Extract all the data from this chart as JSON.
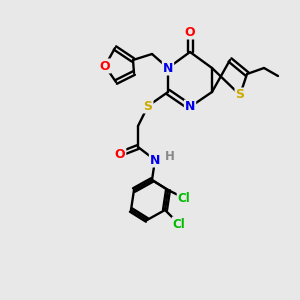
{
  "background_color": "#e8e8e8",
  "bond_color": "#000000",
  "atom_colors": {
    "N": "#0000ee",
    "O": "#ff0000",
    "S": "#ccaa00",
    "Cl": "#00bb00",
    "H": "#888888"
  },
  "figsize": [
    3.0,
    3.0
  ],
  "dpi": 100
}
